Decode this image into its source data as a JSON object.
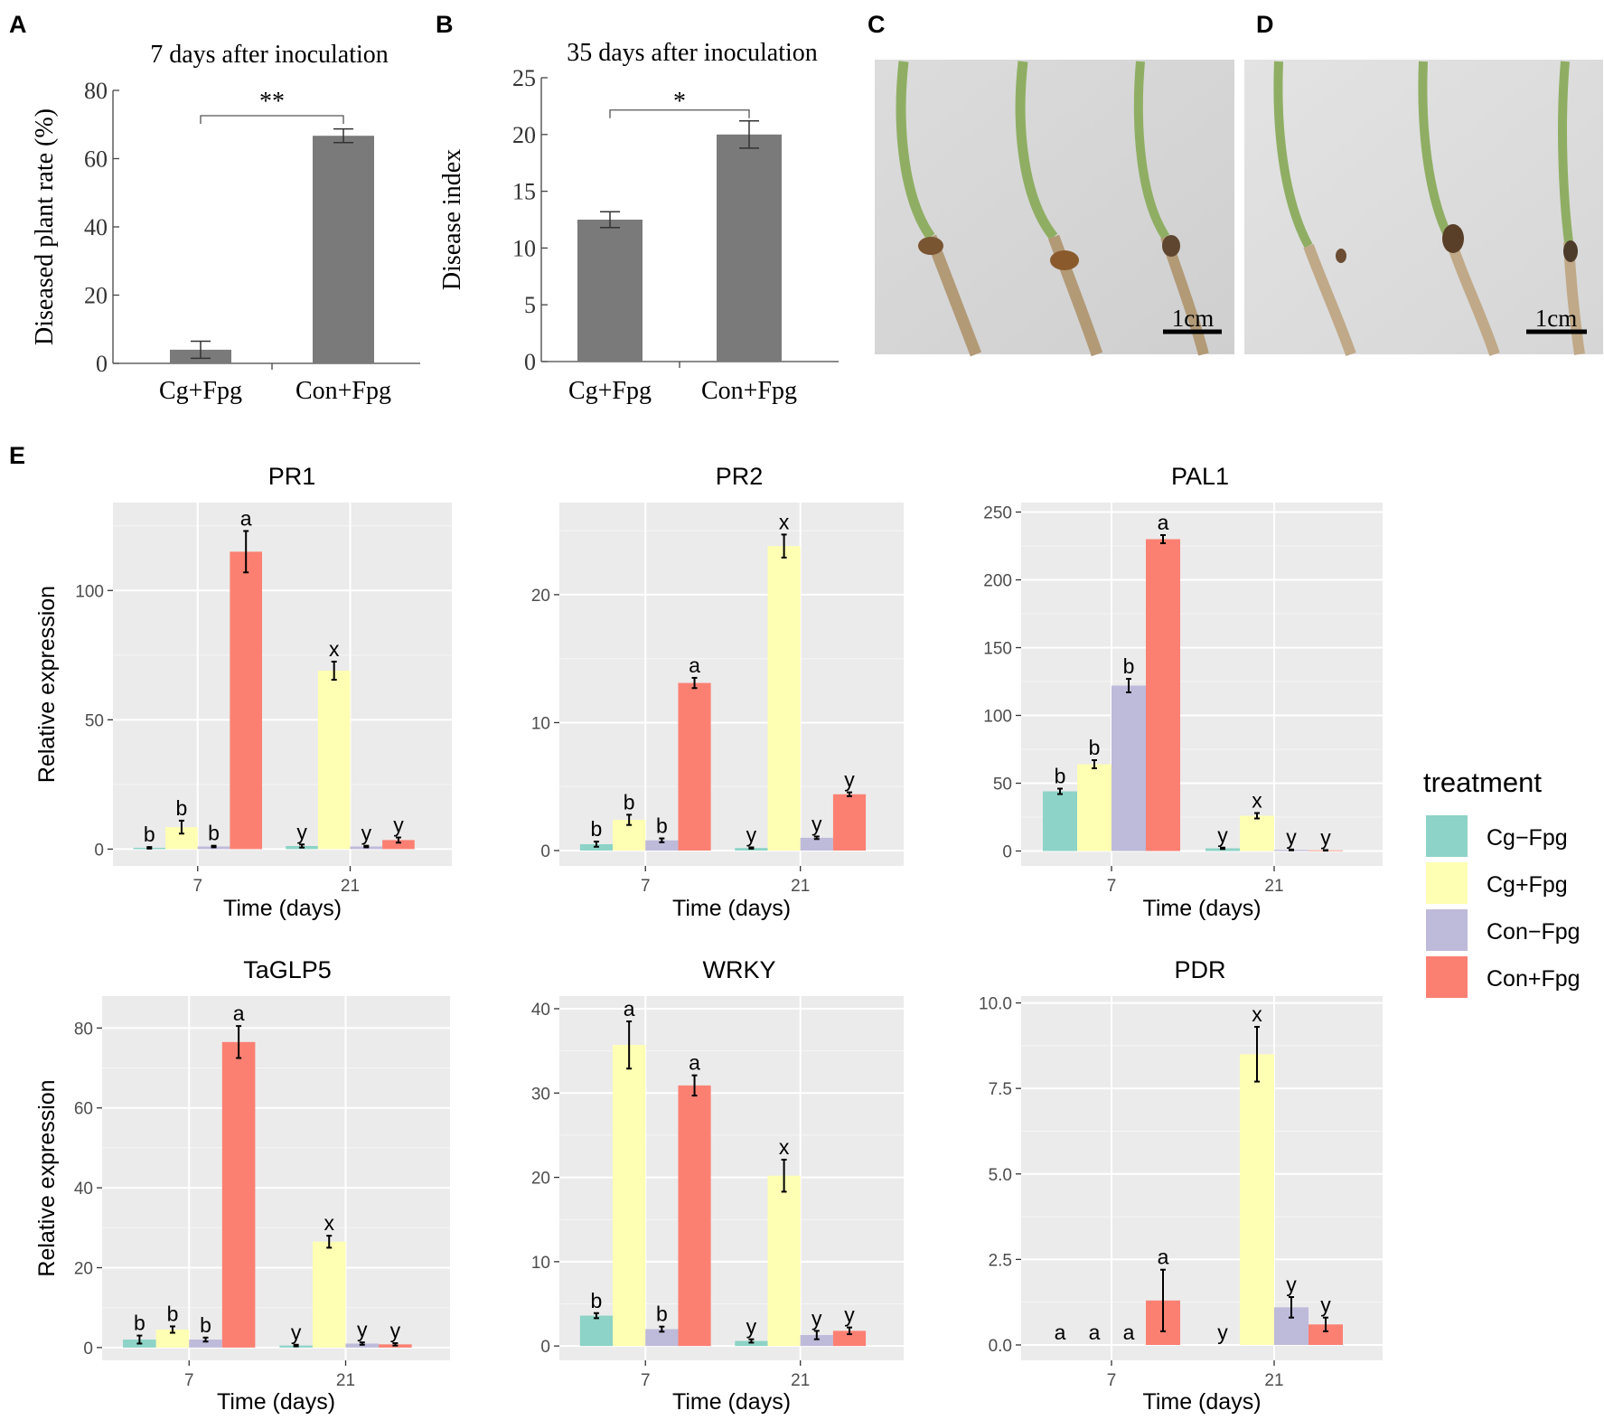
{
  "panel_letters": {
    "a": "A",
    "b": "B",
    "c": "C",
    "d": "D",
    "e": "E"
  },
  "photos": {
    "c": {
      "scale_label": "1cm"
    },
    "d": {
      "scale_label": "1cm"
    }
  },
  "colors": {
    "bar_gray": "#7a7a7a",
    "panel_bg": "#ebebeb",
    "Cg-Fpg": "#8dd3c7",
    "Cg+Fpg": "#ffffb3",
    "Con-Fpg": "#bebada",
    "Con+Fpg": "#fb8072"
  },
  "legend": {
    "title": "treatment",
    "items": [
      "Cg−Fpg",
      "Cg+Fpg",
      "Con−Fpg",
      "Con+Fpg"
    ]
  },
  "chart_data": [
    {
      "id": "A",
      "type": "bar",
      "title": "7 days after inoculation",
      "ylabel": "Diseased plant rate (%)",
      "xlabel": "",
      "categories": [
        "Cg+Fpg",
        "Con+Fpg"
      ],
      "values": [
        4,
        66.7
      ],
      "errors": [
        2.5,
        2
      ],
      "ylim": [
        0,
        80
      ],
      "yticks": [
        0,
        20,
        40,
        60,
        80
      ],
      "significance": "**"
    },
    {
      "id": "B",
      "type": "bar",
      "title": "35 days after inoculation",
      "ylabel": "Disease index",
      "xlabel": "",
      "categories": [
        "Cg+Fpg",
        "Con+Fpg"
      ],
      "values": [
        12.5,
        20
      ],
      "errors": [
        0.7,
        1.2
      ],
      "ylim": [
        0,
        25
      ],
      "yticks": [
        0,
        5,
        10,
        15,
        20,
        25
      ],
      "significance": "*"
    },
    {
      "id": "PR1",
      "type": "bar",
      "title": "PR1",
      "xlabel": "Time (days)",
      "ylabel": "Relative expression",
      "categories": [
        "7",
        "21"
      ],
      "ylim": [
        -6.5,
        134
      ],
      "yticks": [
        0,
        50,
        100
      ],
      "series": [
        {
          "name": "Cg−Fpg",
          "values": [
            0.5,
            1.2
          ],
          "errors": [
            0.3,
            0.6
          ],
          "labels": [
            "b",
            "y"
          ]
        },
        {
          "name": "Cg+Fpg",
          "values": [
            8.5,
            69
          ],
          "errors": [
            2.5,
            3.5
          ],
          "labels": [
            "b",
            "x"
          ]
        },
        {
          "name": "Con−Fpg",
          "values": [
            1,
            1
          ],
          "errors": [
            0.3,
            0.3
          ],
          "labels": [
            "b",
            "y"
          ]
        },
        {
          "name": "Con+Fpg",
          "values": [
            115,
            3.5
          ],
          "errors": [
            8,
            1
          ],
          "labels": [
            "a",
            "y"
          ]
        }
      ]
    },
    {
      "id": "PR2",
      "type": "bar",
      "title": "PR2",
      "xlabel": "Time (days)",
      "ylabel": "",
      "categories": [
        "7",
        "21"
      ],
      "ylim": [
        -1.2,
        27.2
      ],
      "yticks": [
        0,
        10,
        20
      ],
      "series": [
        {
          "name": "Cg−Fpg",
          "values": [
            0.5,
            0.2
          ],
          "errors": [
            0.2,
            0.05
          ],
          "labels": [
            "b",
            "y"
          ]
        },
        {
          "name": "Cg+Fpg",
          "values": [
            2.4,
            23.8
          ],
          "errors": [
            0.4,
            0.9
          ],
          "labels": [
            "b",
            "x"
          ]
        },
        {
          "name": "Con−Fpg",
          "values": [
            0.8,
            1
          ],
          "errors": [
            0.15,
            0.1
          ],
          "labels": [
            "b",
            "y"
          ]
        },
        {
          "name": "Con+Fpg",
          "values": [
            13.1,
            4.4
          ],
          "errors": [
            0.4,
            0.15
          ],
          "labels": [
            "a",
            "y"
          ]
        }
      ]
    },
    {
      "id": "PAL1",
      "type": "bar",
      "title": "PAL1",
      "xlabel": "Time (days)",
      "ylabel": "",
      "categories": [
        "7",
        "21"
      ],
      "ylim": [
        -11,
        257
      ],
      "yticks": [
        0,
        50,
        100,
        150,
        200,
        250
      ],
      "series": [
        {
          "name": "Cg−Fpg",
          "values": [
            44,
            2
          ],
          "errors": [
            2,
            0.5
          ],
          "labels": [
            "b",
            "y"
          ]
        },
        {
          "name": "Cg+Fpg",
          "values": [
            64,
            26
          ],
          "errors": [
            3,
            2
          ],
          "labels": [
            "b",
            "x"
          ]
        },
        {
          "name": "Con−Fpg",
          "values": [
            122,
            0.8
          ],
          "errors": [
            5,
            0.3
          ],
          "labels": [
            "b",
            "y"
          ]
        },
        {
          "name": "Con+Fpg",
          "values": [
            230,
            0.5
          ],
          "errors": [
            3,
            0.2
          ],
          "labels": [
            "a",
            "y"
          ]
        }
      ]
    },
    {
      "id": "TaGLP5",
      "type": "bar",
      "title": "TaGLP5",
      "xlabel": "Time (days)",
      "ylabel": "Relative expression",
      "categories": [
        "7",
        "21"
      ],
      "ylim": [
        -3.2,
        88
      ],
      "yticks": [
        0,
        20,
        40,
        60,
        80
      ],
      "series": [
        {
          "name": "Cg−Fpg",
          "values": [
            2,
            0.5
          ],
          "errors": [
            1,
            0.2
          ],
          "labels": [
            "b",
            "y"
          ]
        },
        {
          "name": "Cg+Fpg",
          "values": [
            4.5,
            26.5
          ],
          "errors": [
            0.8,
            1.5
          ],
          "labels": [
            "b",
            "x"
          ]
        },
        {
          "name": "Con−Fpg",
          "values": [
            2,
            1
          ],
          "errors": [
            0.5,
            0.3
          ],
          "labels": [
            "b",
            "y"
          ]
        },
        {
          "name": "Con+Fpg",
          "values": [
            76.5,
            0.8
          ],
          "errors": [
            4,
            0.3
          ],
          "labels": [
            "a",
            "y"
          ]
        }
      ]
    },
    {
      "id": "WRKY",
      "type": "bar",
      "title": "WRKY",
      "xlabel": "Time (days)",
      "ylabel": "",
      "categories": [
        "7",
        "21"
      ],
      "ylim": [
        -1.7,
        41.5
      ],
      "yticks": [
        0,
        10,
        20,
        30,
        40
      ],
      "series": [
        {
          "name": "Cg−Fpg",
          "values": [
            3.6,
            0.6
          ],
          "errors": [
            0.3,
            0.2
          ],
          "labels": [
            "b",
            "y"
          ]
        },
        {
          "name": "Cg+Fpg",
          "values": [
            35.7,
            20.2
          ],
          "errors": [
            2.8,
            1.9
          ],
          "labels": [
            "a",
            "x"
          ]
        },
        {
          "name": "Con−Fpg",
          "values": [
            2,
            1.3
          ],
          "errors": [
            0.3,
            0.5
          ],
          "labels": [
            "b",
            "y"
          ]
        },
        {
          "name": "Con+Fpg",
          "values": [
            30.9,
            1.8
          ],
          "errors": [
            1.2,
            0.4
          ],
          "labels": [
            "a",
            "y"
          ]
        }
      ]
    },
    {
      "id": "PDR",
      "type": "bar",
      "title": "PDR",
      "xlabel": "Time (days)",
      "ylabel": "",
      "categories": [
        "7",
        "21"
      ],
      "ylim": [
        -0.45,
        10.2
      ],
      "yticks": [
        0.0,
        2.5,
        5.0,
        7.5,
        10.0
      ],
      "ytick_decimals": 1,
      "series": [
        {
          "name": "Cg−Fpg",
          "values": [
            0,
            0
          ],
          "errors": [
            0,
            0
          ],
          "labels": [
            "a",
            "y"
          ]
        },
        {
          "name": "Cg+Fpg",
          "values": [
            0,
            8.5
          ],
          "errors": [
            0,
            0.8
          ],
          "labels": [
            "a",
            "x"
          ]
        },
        {
          "name": "Con−Fpg",
          "values": [
            0,
            1.1
          ],
          "errors": [
            0,
            0.3
          ],
          "labels": [
            "a",
            "y"
          ]
        },
        {
          "name": "Con+Fpg",
          "values": [
            1.3,
            0.6
          ],
          "errors": [
            0.9,
            0.2
          ],
          "labels": [
            "a",
            "y"
          ]
        }
      ]
    }
  ]
}
